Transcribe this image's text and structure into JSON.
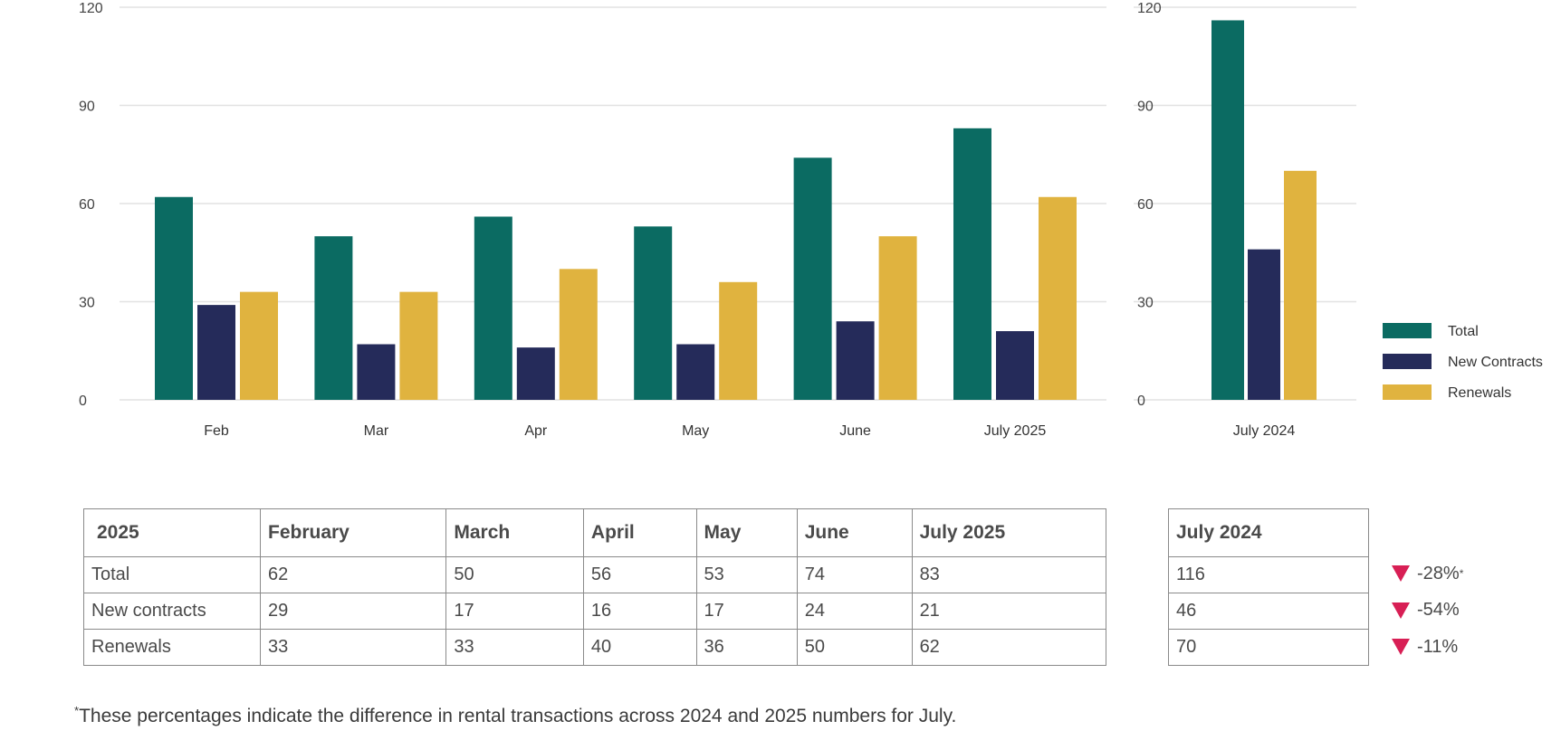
{
  "chart_data": [
    {
      "type": "bar",
      "categories": [
        "Feb",
        "Mar",
        "Apr",
        "May",
        "June",
        "July 2025"
      ],
      "series": [
        {
          "name": "Total",
          "values": [
            62,
            50,
            56,
            53,
            74,
            83
          ]
        },
        {
          "name": "New Contracts",
          "values": [
            29,
            17,
            16,
            17,
            24,
            21
          ]
        },
        {
          "name": "Renewals",
          "values": [
            33,
            33,
            40,
            36,
            50,
            62
          ]
        }
      ],
      "yticks": [
        "0",
        "30",
        "60",
        "90",
        "120"
      ],
      "ylim": [
        0,
        120
      ],
      "grid": true,
      "colors": [
        "#0b6b62",
        "#252b5a",
        "#e0b33f"
      ]
    },
    {
      "type": "bar",
      "categories": [
        "July 2024"
      ],
      "series": [
        {
          "name": "Total",
          "values": [
            116
          ]
        },
        {
          "name": "New Contracts",
          "values": [
            46
          ]
        },
        {
          "name": "Renewals",
          "values": [
            70
          ]
        }
      ],
      "yticks": [
        "0",
        "30",
        "60",
        "90",
        "120"
      ],
      "ylim": [
        0,
        120
      ],
      "grid": true,
      "legend_position": "right",
      "colors": [
        "#0b6b62",
        "#252b5a",
        "#e0b33f"
      ]
    }
  ],
  "legend": [
    {
      "label": "Total",
      "color": "#0b6b62"
    },
    {
      "label": "New Contracts",
      "color": "#252b5a"
    },
    {
      "label": "Renewals",
      "color": "#e0b33f"
    }
  ],
  "table_2025": {
    "headers": [
      "2025",
      "February",
      "March",
      "April",
      "May",
      "June",
      "July 2025"
    ],
    "rows": [
      [
        "Total",
        "62",
        "50",
        "56",
        "53",
        "74",
        "83"
      ],
      [
        "New contracts",
        "29",
        "17",
        "16",
        "17",
        "24",
        "21"
      ],
      [
        "Renewals",
        "33",
        "33",
        "40",
        "36",
        "50",
        "62"
      ]
    ]
  },
  "table_2024": {
    "header": "July 2024",
    "rows": [
      "116",
      "46",
      "70"
    ]
  },
  "changes": [
    {
      "value": "-28%",
      "marker": "*"
    },
    {
      "value": "-54%",
      "marker": ""
    },
    {
      "value": "-11%",
      "marker": ""
    }
  ],
  "footnote": {
    "marker": "*",
    "text": "These percentages indicate the difference in rental transactions across 2024 and 2025 numbers for July."
  }
}
